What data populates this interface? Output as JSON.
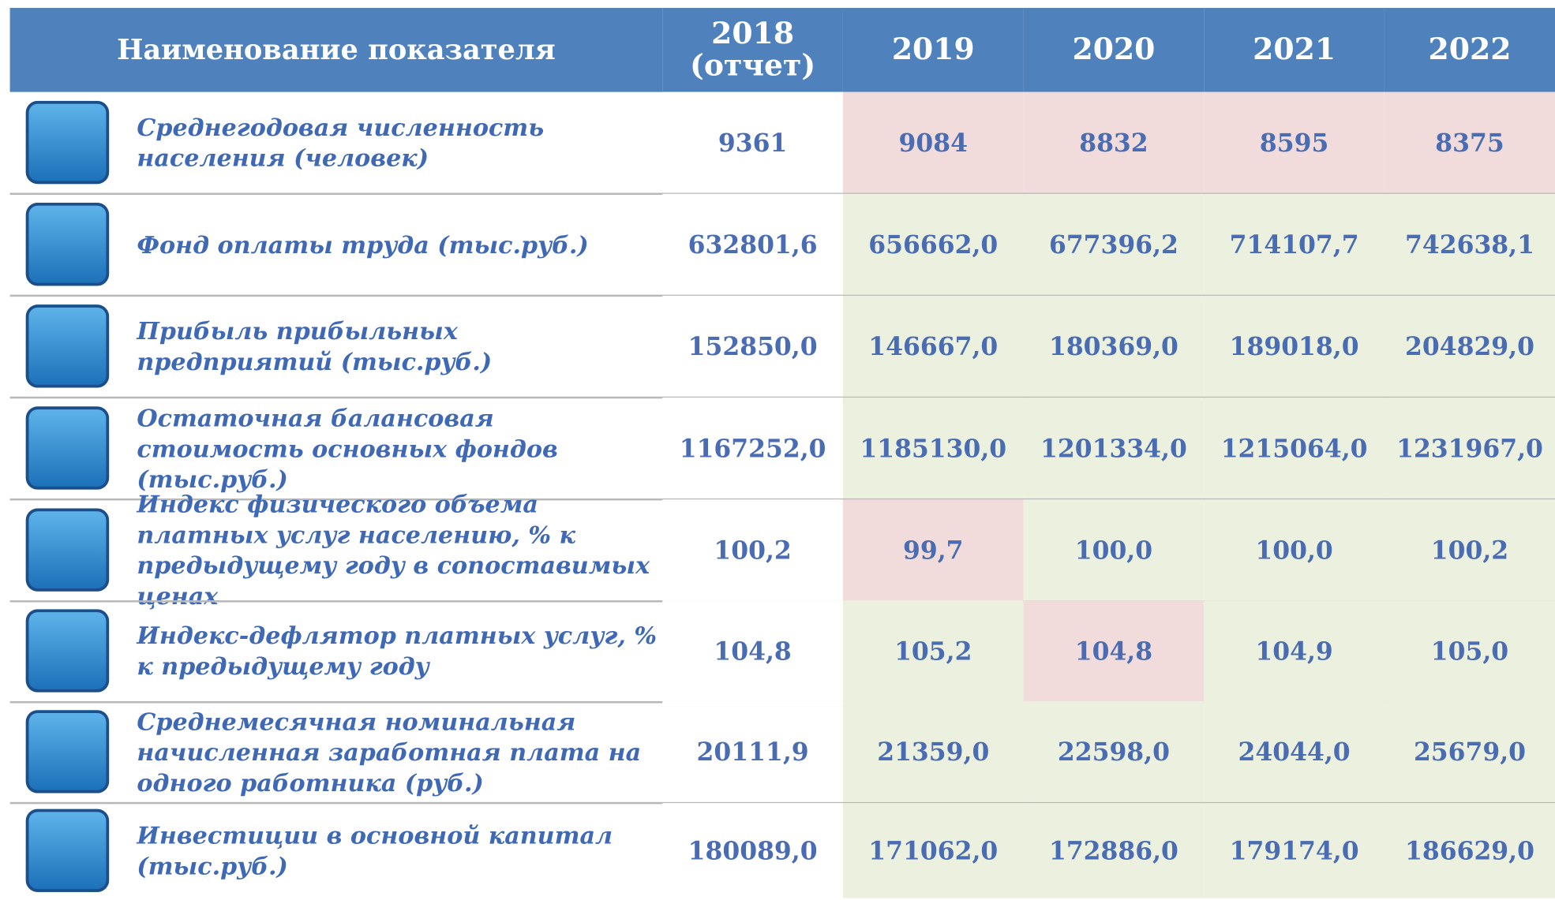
{
  "table": {
    "header": [
      "Наименование показателя",
      "2018\n(отчет)",
      "2019",
      "2020",
      "2021",
      "2022"
    ],
    "rows": [
      [
        "Среднегодовая численность населения (человек)",
        "9361",
        "9084",
        "8832",
        "8595",
        "8375"
      ],
      [
        "Фонд оплаты труда (тыс.руб.)",
        "632801,6",
        "656662,0",
        "677396,2",
        "714107,7",
        "742638,1"
      ],
      [
        "Прибыль прибыльных предприятий (тыс.руб.)",
        "152850,0",
        "146667,0",
        "180369,0",
        "189018,0",
        "204829,0"
      ],
      [
        "Остаточная балансовая стоимость основных фондов (тыс.руб.)",
        "1167252,0",
        "1185130,0",
        "1201334,0",
        "1215064,0",
        "1231967,0"
      ],
      [
        "Индекс физического объема платных услуг населению, % к предыдущему году в сопоставимых ценах",
        "100,2",
        "99,7",
        "100,0",
        "100,0",
        "100,2"
      ],
      [
        "Индекс-дефлятор платных услуг, % к предыдущему году",
        "104,8",
        "105,2",
        "104,8",
        "104,9",
        "105,0"
      ],
      [
        "Среднемесячная номинальная начисленная заработная плата на одного работника (руб.)",
        "20111,9",
        "21359,0",
        "22598,0",
        "24044,0",
        "25679,0"
      ],
      [
        "Инвестиции в основной капитал (тыс.руб.)",
        "180089,0",
        "171062,0",
        "172886,0",
        "179174,0",
        "186629,0"
      ]
    ],
    "cell_colors": [
      [
        "#ffffff",
        "#f2dcdb",
        "#f2dcdb",
        "#f2dcdb",
        "#f2dcdb"
      ],
      [
        "#ffffff",
        "#ebf1de",
        "#ebf1de",
        "#ebf1de",
        "#ebf1de"
      ],
      [
        "#ffffff",
        "#ebf1de",
        "#ebf1de",
        "#ebf1de",
        "#ebf1de"
      ],
      [
        "#ffffff",
        "#ebf1de",
        "#ebf1de",
        "#ebf1de",
        "#ebf1de"
      ],
      [
        "#ffffff",
        "#f2dcdb",
        "#ebf1de",
        "#ebf1de",
        "#ebf1de"
      ],
      [
        "#ffffff",
        "#ebf1de",
        "#f2dcdb",
        "#ebf1de",
        "#ebf1de"
      ],
      [
        "#ffffff",
        "#ebf1de",
        "#ebf1de",
        "#ebf1de",
        "#ebf1de"
      ],
      [
        "#ffffff",
        "#ebf1de",
        "#ebf1de",
        "#ebf1de",
        "#ebf1de"
      ]
    ]
  }
}
